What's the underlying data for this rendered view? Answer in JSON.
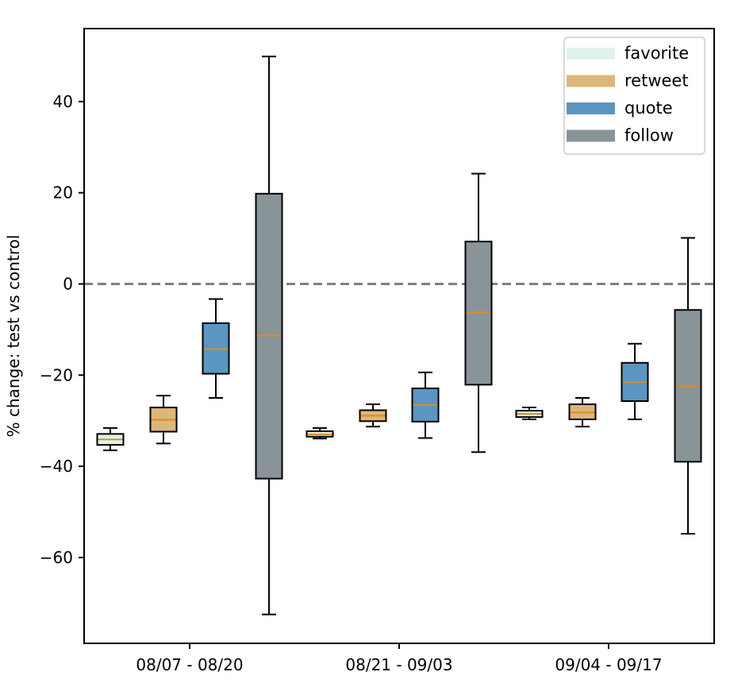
{
  "chart_data": {
    "type": "box",
    "ylabel": "% change: test vs control",
    "ylim": [
      -78,
      56
    ],
    "yticks": [
      -60,
      -40,
      -20,
      0,
      20,
      40
    ],
    "ytick_labels": [
      "−60",
      "−40",
      "−20",
      "0",
      "20",
      "40"
    ],
    "reference_line": {
      "y": 0,
      "style": "dashed",
      "color": "#808080"
    },
    "groups": [
      "08/07 - 08/20",
      "08/21 - 09/03",
      "09/04 - 09/17"
    ],
    "legend": {
      "position": "top-right"
    },
    "series": [
      {
        "name": "favorite",
        "color": "#dff3ea",
        "boxes": [
          {
            "whislo": -36.5,
            "q1": -35.3,
            "med": -34.1,
            "q3": -32.9,
            "whishi": -31.6
          },
          {
            "whislo": -33.9,
            "q1": -33.5,
            "med": -33.0,
            "q3": -32.3,
            "whishi": -31.6
          },
          {
            "whislo": -29.7,
            "q1": -29.2,
            "med": -28.5,
            "q3": -27.8,
            "whishi": -27.1
          }
        ]
      },
      {
        "name": "retweet",
        "color": "#ddb67a",
        "boxes": [
          {
            "whislo": -35.0,
            "q1": -32.4,
            "med": -29.8,
            "q3": -27.1,
            "whishi": -24.5
          },
          {
            "whislo": -31.3,
            "q1": -30.1,
            "med": -28.9,
            "q3": -27.7,
            "whishi": -26.4
          },
          {
            "whislo": -31.3,
            "q1": -29.7,
            "med": -28.2,
            "q3": -26.4,
            "whishi": -25.0
          }
        ]
      },
      {
        "name": "quote",
        "color": "#5a96c1",
        "boxes": [
          {
            "whislo": -25.0,
            "q1": -19.7,
            "med": -14.3,
            "q3": -8.6,
            "whishi": -3.3
          },
          {
            "whislo": -33.8,
            "q1": -30.2,
            "med": -26.6,
            "q3": -22.9,
            "whishi": -19.4
          },
          {
            "whislo": -29.7,
            "q1": -25.7,
            "med": -21.5,
            "q3": -17.3,
            "whishi": -13.1
          }
        ]
      },
      {
        "name": "follow",
        "color": "#899499",
        "boxes": [
          {
            "whislo": -72.5,
            "q1": -42.7,
            "med": -11.3,
            "q3": 19.8,
            "whishi": 49.9
          },
          {
            "whislo": -36.9,
            "q1": -22.1,
            "med": -6.2,
            "q3": 9.3,
            "whishi": 24.2
          },
          {
            "whislo": -54.8,
            "q1": -39.0,
            "med": -22.5,
            "q3": -5.7,
            "whishi": 10.1
          }
        ]
      }
    ]
  }
}
